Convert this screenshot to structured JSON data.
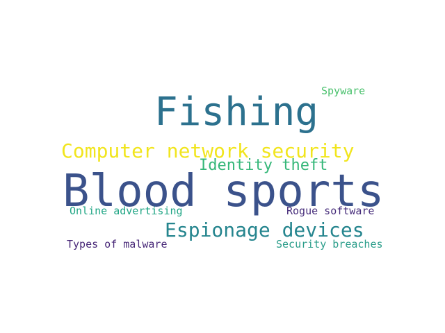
{
  "words": [
    {
      "text": "Spyware",
      "color": "#4ac16d"
    },
    {
      "text": "Fishing",
      "color": "#2c718e"
    },
    {
      "text": "Computer network security",
      "color": "#f1e51d"
    },
    {
      "text": "Identity theft",
      "color": "#35b779"
    },
    {
      "text": "Blood sports",
      "color": "#3b528b"
    },
    {
      "text": "Online advertising",
      "color": "#21a685"
    },
    {
      "text": "Rogue software",
      "color": "#472d7b"
    },
    {
      "text": "Espionage devices",
      "color": "#25858e"
    },
    {
      "text": "Types of malware",
      "color": "#482878"
    },
    {
      "text": "Security breaches",
      "color": "#2a9d8a"
    }
  ]
}
